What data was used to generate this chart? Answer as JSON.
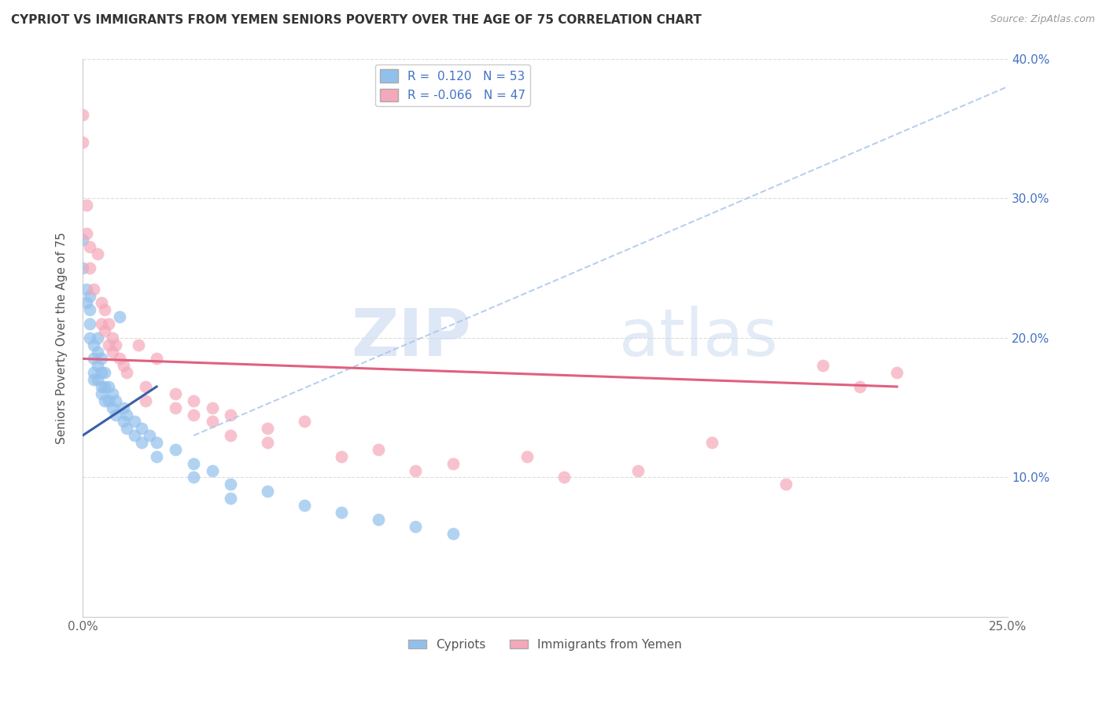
{
  "title": "CYPRIOT VS IMMIGRANTS FROM YEMEN SENIORS POVERTY OVER THE AGE OF 75 CORRELATION CHART",
  "source": "Source: ZipAtlas.com",
  "ylabel": "Seniors Poverty Over the Age of 75",
  "legend_labels": [
    "Cypriots",
    "Immigrants from Yemen"
  ],
  "cypriot_R": 0.12,
  "cypriot_N": 53,
  "yemen_R": -0.066,
  "yemen_N": 47,
  "xlim": [
    0.0,
    0.25
  ],
  "ylim": [
    0.0,
    0.4
  ],
  "blue_color": "#92C0EC",
  "pink_color": "#F5A8BA",
  "blue_line_color": "#3A5FA8",
  "pink_line_color": "#E06080",
  "dashed_line_color": "#A8C4E8",
  "background_color": "#FFFFFF",
  "grid_color": "#DDDDDD",
  "watermark_zip": "ZIP",
  "watermark_atlas": "atlas",
  "cypriot_points": [
    [
      0.0,
      0.27
    ],
    [
      0.0,
      0.25
    ],
    [
      0.001,
      0.235
    ],
    [
      0.001,
      0.225
    ],
    [
      0.002,
      0.23
    ],
    [
      0.002,
      0.22
    ],
    [
      0.002,
      0.21
    ],
    [
      0.002,
      0.2
    ],
    [
      0.003,
      0.195
    ],
    [
      0.003,
      0.185
    ],
    [
      0.003,
      0.175
    ],
    [
      0.003,
      0.17
    ],
    [
      0.004,
      0.2
    ],
    [
      0.004,
      0.19
    ],
    [
      0.004,
      0.18
    ],
    [
      0.004,
      0.17
    ],
    [
      0.005,
      0.185
    ],
    [
      0.005,
      0.175
    ],
    [
      0.005,
      0.165
    ],
    [
      0.005,
      0.16
    ],
    [
      0.006,
      0.175
    ],
    [
      0.006,
      0.165
    ],
    [
      0.006,
      0.155
    ],
    [
      0.007,
      0.165
    ],
    [
      0.007,
      0.155
    ],
    [
      0.008,
      0.16
    ],
    [
      0.008,
      0.15
    ],
    [
      0.009,
      0.155
    ],
    [
      0.009,
      0.145
    ],
    [
      0.01,
      0.215
    ],
    [
      0.011,
      0.15
    ],
    [
      0.011,
      0.14
    ],
    [
      0.012,
      0.145
    ],
    [
      0.012,
      0.135
    ],
    [
      0.014,
      0.14
    ],
    [
      0.014,
      0.13
    ],
    [
      0.016,
      0.135
    ],
    [
      0.016,
      0.125
    ],
    [
      0.018,
      0.13
    ],
    [
      0.02,
      0.125
    ],
    [
      0.02,
      0.115
    ],
    [
      0.025,
      0.12
    ],
    [
      0.03,
      0.11
    ],
    [
      0.03,
      0.1
    ],
    [
      0.035,
      0.105
    ],
    [
      0.04,
      0.095
    ],
    [
      0.04,
      0.085
    ],
    [
      0.05,
      0.09
    ],
    [
      0.06,
      0.08
    ],
    [
      0.07,
      0.075
    ],
    [
      0.08,
      0.07
    ],
    [
      0.09,
      0.065
    ],
    [
      0.1,
      0.06
    ]
  ],
  "yemen_points": [
    [
      0.0,
      0.36
    ],
    [
      0.0,
      0.34
    ],
    [
      0.001,
      0.295
    ],
    [
      0.001,
      0.275
    ],
    [
      0.002,
      0.265
    ],
    [
      0.002,
      0.25
    ],
    [
      0.003,
      0.235
    ],
    [
      0.004,
      0.26
    ],
    [
      0.005,
      0.225
    ],
    [
      0.005,
      0.21
    ],
    [
      0.006,
      0.22
    ],
    [
      0.006,
      0.205
    ],
    [
      0.007,
      0.21
    ],
    [
      0.007,
      0.195
    ],
    [
      0.008,
      0.2
    ],
    [
      0.008,
      0.19
    ],
    [
      0.009,
      0.195
    ],
    [
      0.01,
      0.185
    ],
    [
      0.011,
      0.18
    ],
    [
      0.012,
      0.175
    ],
    [
      0.015,
      0.195
    ],
    [
      0.017,
      0.165
    ],
    [
      0.017,
      0.155
    ],
    [
      0.02,
      0.185
    ],
    [
      0.025,
      0.16
    ],
    [
      0.025,
      0.15
    ],
    [
      0.03,
      0.155
    ],
    [
      0.03,
      0.145
    ],
    [
      0.035,
      0.15
    ],
    [
      0.035,
      0.14
    ],
    [
      0.04,
      0.145
    ],
    [
      0.04,
      0.13
    ],
    [
      0.05,
      0.135
    ],
    [
      0.05,
      0.125
    ],
    [
      0.06,
      0.14
    ],
    [
      0.07,
      0.115
    ],
    [
      0.08,
      0.12
    ],
    [
      0.09,
      0.105
    ],
    [
      0.1,
      0.11
    ],
    [
      0.12,
      0.115
    ],
    [
      0.13,
      0.1
    ],
    [
      0.15,
      0.105
    ],
    [
      0.17,
      0.125
    ],
    [
      0.19,
      0.095
    ],
    [
      0.2,
      0.18
    ],
    [
      0.21,
      0.165
    ],
    [
      0.22,
      0.175
    ]
  ]
}
